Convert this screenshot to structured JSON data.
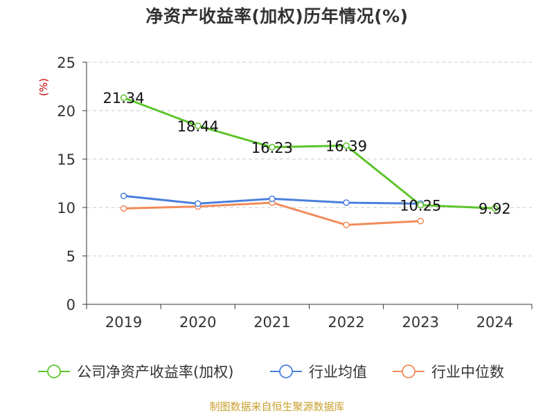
{
  "colors": {
    "roe": "#5cc42b",
    "industry_avg": "#4a7fdc",
    "industry_median": "#f28a58",
    "ylabel": "#cc0000",
    "source": "#c8a030"
  },
  "source_note": "制图数据来自恒生聚源数据库",
  "chart_data": {
    "type": "line",
    "title": "净资产收益率(加权)历年情况(%)",
    "ylabel": "(%)",
    "xlabel": "",
    "categories": [
      "2019",
      "2020",
      "2021",
      "2022",
      "2023",
      "2024"
    ],
    "ylim": [
      0,
      25
    ],
    "yticks": [
      0,
      5,
      10,
      15,
      20,
      25
    ],
    "grid": true,
    "legend_position": "bottom",
    "series": [
      {
        "name": "公司净资产收益率(加权)",
        "color": "#5cc42b",
        "values": [
          21.34,
          18.44,
          16.23,
          16.39,
          10.25,
          9.92
        ],
        "labels": [
          "21.34",
          "18.44",
          "16.23",
          "16.39",
          "10.25",
          "9.92"
        ]
      },
      {
        "name": "行业均值",
        "color": "#4a7fdc",
        "values": [
          11.2,
          10.4,
          10.9,
          10.5,
          10.4,
          null
        ]
      },
      {
        "name": "行业中位数",
        "color": "#f28a58",
        "values": [
          9.9,
          10.1,
          10.5,
          8.2,
          8.6,
          null
        ]
      }
    ]
  }
}
